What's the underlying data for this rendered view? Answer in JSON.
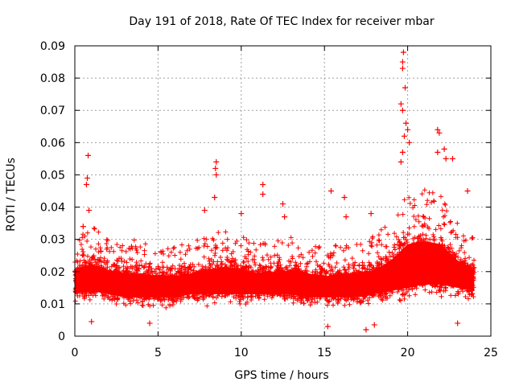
{
  "chart_data": {
    "type": "scatter",
    "title": "Day 191 of 2018, Rate Of TEC Index for receiver mbar",
    "xlabel": "GPS time / hours",
    "ylabel": "ROTI / TECUs",
    "xlim": [
      0,
      25
    ],
    "ylim": [
      0,
      0.09
    ],
    "x_ticks": [
      0,
      5,
      10,
      15,
      20,
      25
    ],
    "y_ticks": [
      0,
      0.01,
      0.02,
      0.03,
      0.04,
      0.05,
      0.06,
      0.07,
      0.08,
      0.09
    ],
    "grid": true,
    "marker": "+",
    "series": [
      {
        "name": "ROTI",
        "color": "#ff0000",
        "points": [
          [
            0.8,
            0.056
          ],
          [
            0.75,
            0.049
          ],
          [
            0.7,
            0.047
          ],
          [
            0.85,
            0.039
          ],
          [
            0.5,
            0.034
          ],
          [
            8.5,
            0.054
          ],
          [
            8.45,
            0.052
          ],
          [
            8.5,
            0.05
          ],
          [
            8.4,
            0.043
          ],
          [
            7.8,
            0.039
          ],
          [
            10.0,
            0.038
          ],
          [
            11.3,
            0.047
          ],
          [
            11.3,
            0.044
          ],
          [
            12.5,
            0.041
          ],
          [
            12.6,
            0.037
          ],
          [
            15.4,
            0.045
          ],
          [
            16.2,
            0.043
          ],
          [
            16.3,
            0.037
          ],
          [
            17.8,
            0.038
          ],
          [
            19.75,
            0.088
          ],
          [
            19.7,
            0.085
          ],
          [
            19.7,
            0.083
          ],
          [
            19.85,
            0.077
          ],
          [
            19.6,
            0.072
          ],
          [
            19.7,
            0.07
          ],
          [
            19.9,
            0.066
          ],
          [
            20.0,
            0.064
          ],
          [
            19.8,
            0.062
          ],
          [
            20.1,
            0.06
          ],
          [
            19.7,
            0.057
          ],
          [
            19.6,
            0.054
          ],
          [
            21.8,
            0.064
          ],
          [
            21.9,
            0.063
          ],
          [
            21.8,
            0.057
          ],
          [
            22.2,
            0.058
          ],
          [
            22.3,
            0.055
          ],
          [
            22.7,
            0.055
          ],
          [
            23.6,
            0.045
          ],
          [
            1.0,
            0.0045
          ],
          [
            4.5,
            0.004
          ],
          [
            15.2,
            0.003
          ],
          [
            17.5,
            0.002
          ],
          [
            18.0,
            0.0035
          ],
          [
            23.0,
            0.004
          ]
        ],
        "band": [
          [
            0,
            0.012,
            0.022
          ],
          [
            1,
            0.013,
            0.024
          ],
          [
            2,
            0.012,
            0.022
          ],
          [
            3,
            0.011,
            0.021
          ],
          [
            4,
            0.011,
            0.021
          ],
          [
            5,
            0.011,
            0.02
          ],
          [
            6,
            0.011,
            0.02
          ],
          [
            7,
            0.012,
            0.021
          ],
          [
            8,
            0.012,
            0.022
          ],
          [
            9,
            0.012,
            0.023
          ],
          [
            10,
            0.012,
            0.022
          ],
          [
            11,
            0.012,
            0.021
          ],
          [
            12,
            0.012,
            0.021
          ],
          [
            13,
            0.012,
            0.022
          ],
          [
            14,
            0.011,
            0.021
          ],
          [
            15,
            0.011,
            0.02
          ],
          [
            16,
            0.011,
            0.021
          ],
          [
            17,
            0.011,
            0.021
          ],
          [
            18,
            0.012,
            0.022
          ],
          [
            19,
            0.013,
            0.025
          ],
          [
            20,
            0.014,
            0.03
          ],
          [
            21,
            0.015,
            0.031
          ],
          [
            22,
            0.015,
            0.03
          ],
          [
            23,
            0.014,
            0.025
          ],
          [
            24,
            0.013,
            0.022
          ]
        ]
      }
    ]
  }
}
